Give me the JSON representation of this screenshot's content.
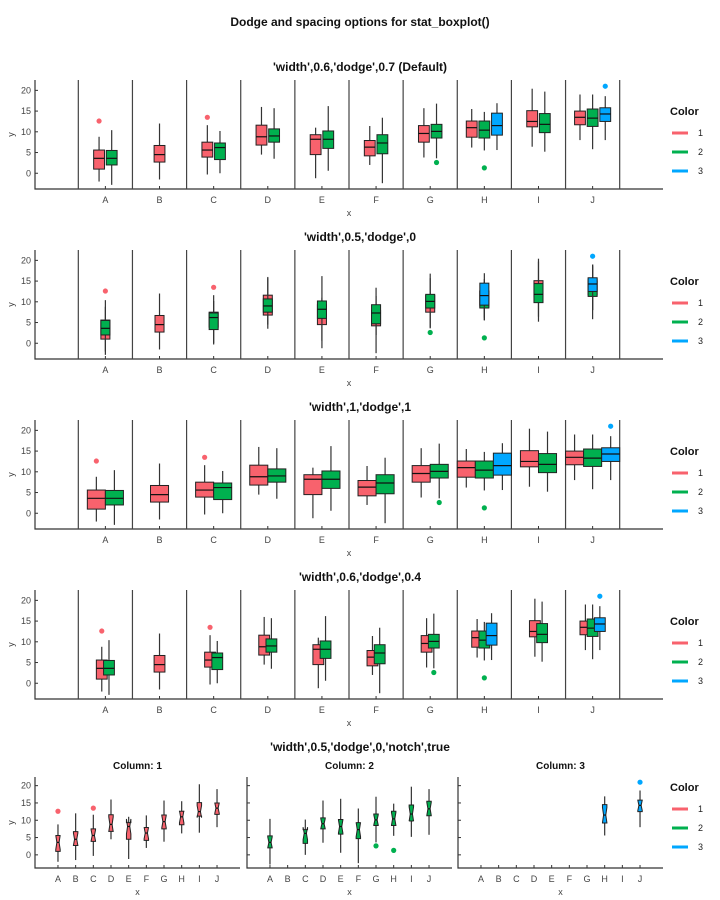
{
  "chart_data": {
    "type": "boxplot",
    "title": "Dodge and spacing options for stat_boxplot()",
    "xlabel": "x",
    "ylabel": "y",
    "categories": [
      "A",
      "B",
      "C",
      "D",
      "E",
      "F",
      "G",
      "H",
      "I",
      "J"
    ],
    "yticks": [
      0,
      5,
      10,
      15,
      20
    ],
    "ylim": [
      -3.8,
      22.5
    ],
    "legend": {
      "title": "Color",
      "position": "right",
      "entries": [
        "1",
        "2",
        "3"
      ]
    },
    "colors": {
      "1": "#F8626D",
      "2": "#00B04F",
      "3": "#00A7FF"
    },
    "series": [
      {
        "name": "1",
        "boxes": [
          {
            "x": "A",
            "low": -2,
            "q1": 1,
            "median": 3.6,
            "q3": 5.6,
            "high": 8.8,
            "outliers": [
              12.6
            ]
          },
          {
            "x": "B",
            "low": -1.5,
            "q1": 2.7,
            "median": 4.5,
            "q3": 6.7,
            "high": 12,
            "outliers": []
          },
          {
            "x": "C",
            "low": -0.3,
            "q1": 3.9,
            "median": 5.6,
            "q3": 7.5,
            "high": 11.6,
            "outliers": [
              13.5
            ]
          },
          {
            "x": "D",
            "low": 4.5,
            "q1": 6.8,
            "median": 8.8,
            "q3": 11.6,
            "high": 16,
            "outliers": []
          },
          {
            "x": "E",
            "low": -1.2,
            "q1": 4.5,
            "median": 8.2,
            "q3": 9.3,
            "high": 11,
            "outliers": []
          },
          {
            "x": "F",
            "low": 2,
            "q1": 4.2,
            "median": 6.3,
            "q3": 7.9,
            "high": 11.4,
            "outliers": []
          },
          {
            "x": "G",
            "low": 3.8,
            "q1": 7.5,
            "median": 9.6,
            "q3": 11.5,
            "high": 15.7,
            "outliers": []
          },
          {
            "x": "H",
            "low": 6.2,
            "q1": 8.7,
            "median": 11,
            "q3": 12.6,
            "high": 15.5,
            "outliers": []
          },
          {
            "x": "I",
            "low": 6.4,
            "q1": 11.2,
            "median": 12.5,
            "q3": 15.1,
            "high": 20.4,
            "outliers": []
          },
          {
            "x": "J",
            "low": 8,
            "q1": 11.7,
            "median": 13.5,
            "q3": 15,
            "high": 19,
            "outliers": []
          }
        ]
      },
      {
        "name": "2",
        "boxes": [
          {
            "x": "A",
            "low": -2.8,
            "q1": 2,
            "median": 3.6,
            "q3": 5.5,
            "high": 10.4,
            "outliers": []
          },
          {
            "x": "C",
            "low": 0,
            "q1": 3.3,
            "median": 6.2,
            "q3": 7.3,
            "high": 10.2,
            "outliers": []
          },
          {
            "x": "D",
            "low": 3.5,
            "q1": 7.5,
            "median": 9,
            "q3": 10.7,
            "high": 15.7,
            "outliers": []
          },
          {
            "x": "E",
            "low": 0.6,
            "q1": 6,
            "median": 8.2,
            "q3": 10.2,
            "high": 16.2,
            "outliers": []
          },
          {
            "x": "F",
            "low": -2.4,
            "q1": 4.7,
            "median": 7.3,
            "q3": 9.3,
            "high": 13.4,
            "outliers": []
          },
          {
            "x": "G",
            "low": 3.6,
            "q1": 8.5,
            "median": 10.1,
            "q3": 11.8,
            "high": 16.8,
            "outliers": [
              2.6
            ]
          },
          {
            "x": "H",
            "low": 5.5,
            "q1": 8.5,
            "median": 10.4,
            "q3": 12.6,
            "high": 14.8,
            "outliers": [
              1.3
            ]
          },
          {
            "x": "I",
            "low": 5.2,
            "q1": 9.8,
            "median": 11.8,
            "q3": 14.4,
            "high": 19.7,
            "outliers": []
          },
          {
            "x": "J",
            "low": 5.8,
            "q1": 11.3,
            "median": 13.3,
            "q3": 15.5,
            "high": 19,
            "outliers": []
          }
        ]
      },
      {
        "name": "3",
        "boxes": [
          {
            "x": "H",
            "low": 5.6,
            "q1": 9.2,
            "median": 11.5,
            "q3": 14.5,
            "high": 16.9,
            "outliers": []
          },
          {
            "x": "J",
            "low": 8,
            "q1": 12.5,
            "median": 14.3,
            "q3": 15.8,
            "high": 18.6,
            "outliers": [
              21
            ]
          }
        ]
      }
    ],
    "panels": [
      {
        "title": "'width',0.6,'dodge',0.7 (Default)",
        "width": 0.6,
        "dodge": 0.7,
        "notch": false,
        "facets": false
      },
      {
        "title": "'width',0.5,'dodge',0",
        "width": 0.5,
        "dodge": 0,
        "notch": false,
        "facets": false
      },
      {
        "title": "'width',1,'dodge',1",
        "width": 1,
        "dodge": 1,
        "notch": false,
        "facets": false
      },
      {
        "title": "'width',0.6,'dodge',0.4",
        "width": 0.6,
        "dodge": 0.4,
        "notch": false,
        "facets": false
      },
      {
        "title": "'width',0.5,'dodge',0,'notch',true",
        "width": 0.5,
        "dodge": 0,
        "notch": true,
        "facets": true,
        "facet_titles": [
          "Column: 1",
          "Column: 2",
          "Column: 3"
        ]
      }
    ]
  }
}
